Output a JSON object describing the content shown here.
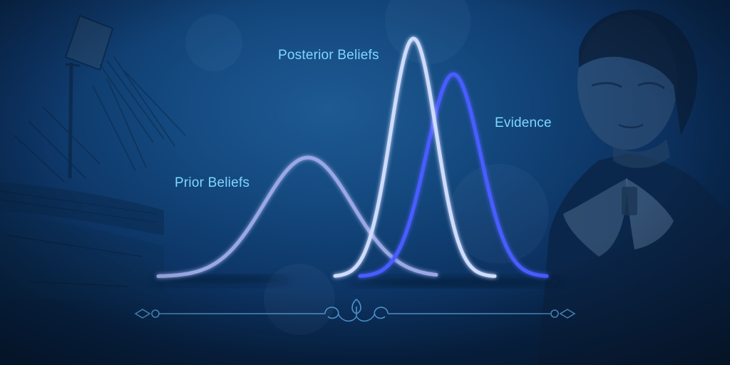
{
  "labels": {
    "prior": "Prior Beliefs",
    "posterior": "Posterior Beliefs",
    "evidence": "Evidence"
  },
  "curves": {
    "prior": {
      "peak": 0.5,
      "color": "#9aa8e6"
    },
    "posterior": {
      "peak": 1.0,
      "color": "#cfdcff"
    },
    "evidence": {
      "peak": 0.85,
      "color": "#4a5dff"
    }
  },
  "colors": {
    "label": "#7fd6ff",
    "background": "#144a80",
    "ornament": "#5aa4e0"
  }
}
